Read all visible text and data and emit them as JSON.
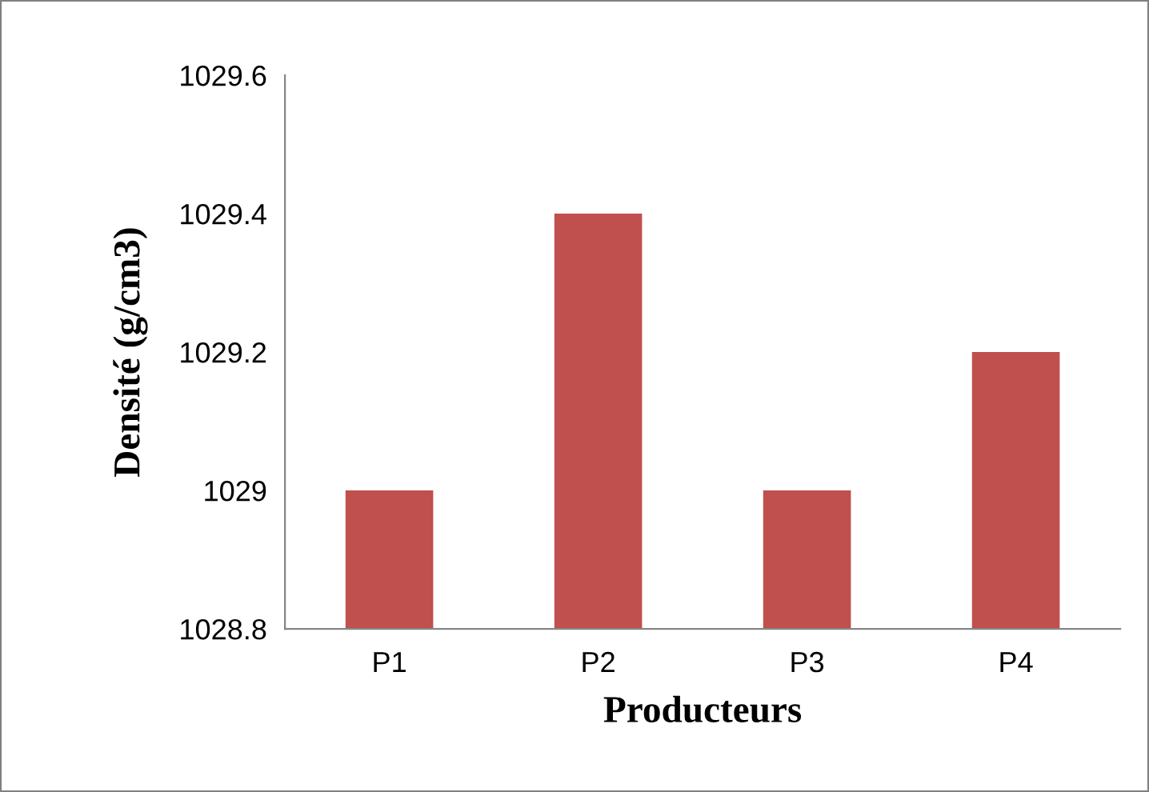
{
  "chart_data": {
    "type": "bar",
    "xlabel": "Producteurs",
    "ylabel": "Densité (g/cm3)",
    "categories": [
      "P1",
      "P2",
      "P3",
      "P4"
    ],
    "values": [
      1029,
      1029.4,
      1029,
      1029.2
    ],
    "color": "#c0504d",
    "ylim": [
      1028.8,
      1029.6
    ],
    "yticks": [
      1028.8,
      1029,
      1029.2,
      1029.4,
      1029.6
    ],
    "grid": false,
    "legend": false
  }
}
